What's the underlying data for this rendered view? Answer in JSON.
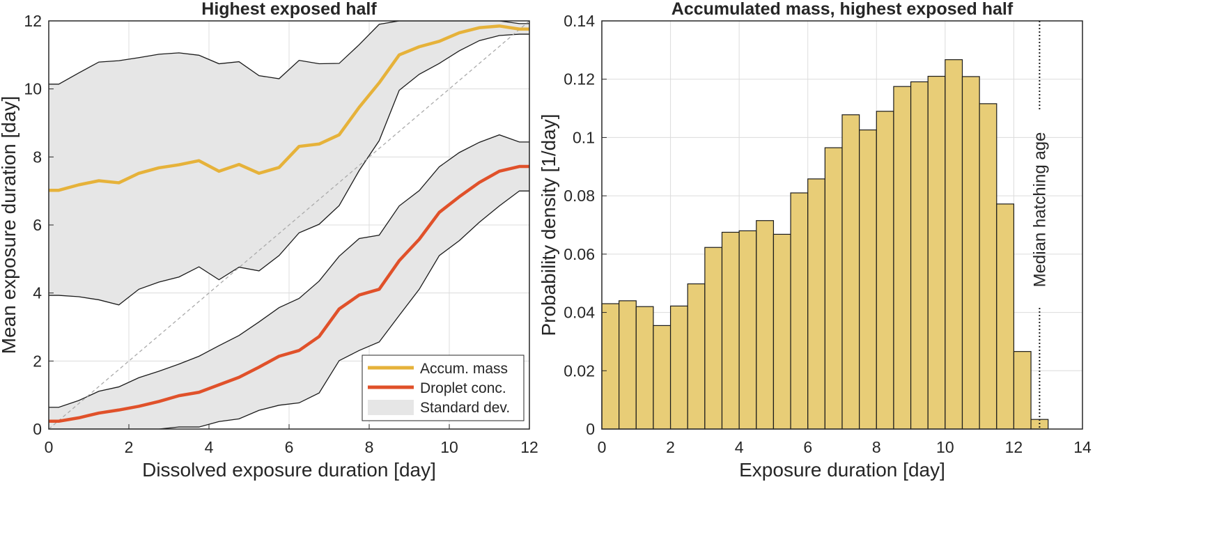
{
  "chart_data": [
    {
      "type": "line",
      "title": "Highest exposed half",
      "xlabel": "Dissolved exposure duration [day]",
      "ylabel": "Mean exposure duration [day]",
      "xlim": [
        0,
        12
      ],
      "ylim": [
        0,
        12
      ],
      "xticks": [
        "0",
        "2",
        "4",
        "6",
        "8",
        "10",
        "12"
      ],
      "yticks": [
        "0",
        "2",
        "4",
        "6",
        "8",
        "10",
        "12"
      ],
      "grid": true,
      "legend_position": "bottom-right",
      "x": [
        0,
        0.25,
        0.75,
        1.25,
        1.75,
        2.25,
        2.75,
        3.25,
        3.75,
        4.25,
        4.75,
        5.25,
        5.75,
        6.25,
        6.75,
        7.25,
        7.75,
        8.25,
        8.75,
        9.25,
        9.75,
        10.25,
        10.75,
        11.25,
        11.75,
        12
      ],
      "series": [
        {
          "name": "Accum. mass",
          "color": "#e6b23a",
          "values": [
            7.02,
            7.02,
            7.18,
            7.3,
            7.24,
            7.52,
            7.68,
            7.77,
            7.89,
            7.58,
            7.78,
            7.52,
            7.69,
            8.31,
            8.38,
            8.65,
            9.46,
            10.18,
            11.0,
            11.24,
            11.4,
            11.65,
            11.8,
            11.85,
            11.76,
            11.76
          ],
          "std_upper": [
            10.14,
            10.14,
            10.47,
            10.79,
            10.83,
            10.92,
            11.02,
            11.06,
            10.99,
            10.74,
            10.8,
            10.39,
            10.3,
            10.84,
            10.74,
            10.75,
            11.3,
            11.9,
            12.0,
            12.0,
            12.0,
            12.0,
            12.0,
            12.0,
            11.92,
            11.92
          ],
          "std_lower": [
            3.93,
            3.93,
            3.89,
            3.8,
            3.65,
            4.11,
            4.32,
            4.47,
            4.77,
            4.39,
            4.76,
            4.65,
            5.1,
            5.77,
            6.02,
            6.57,
            7.6,
            8.48,
            9.96,
            10.43,
            10.75,
            11.12,
            11.42,
            11.57,
            11.61,
            11.61
          ]
        },
        {
          "name": "Droplet conc.",
          "color": "#e0512a",
          "values": [
            0.23,
            0.23,
            0.33,
            0.47,
            0.56,
            0.67,
            0.81,
            0.98,
            1.08,
            1.3,
            1.52,
            1.82,
            2.14,
            2.31,
            2.72,
            3.53,
            3.94,
            4.11,
            4.95,
            5.58,
            6.37,
            6.83,
            7.25,
            7.58,
            7.72,
            7.72
          ],
          "std_upper": [
            0.64,
            0.64,
            0.84,
            1.11,
            1.24,
            1.51,
            1.7,
            1.91,
            2.14,
            2.45,
            2.75,
            3.15,
            3.57,
            3.84,
            4.35,
            5.08,
            5.6,
            5.7,
            6.56,
            7.01,
            7.71,
            8.13,
            8.43,
            8.65,
            8.44,
            8.44
          ],
          "std_lower": [
            0.0,
            0.0,
            0.0,
            0.0,
            0.0,
            0.0,
            0.0,
            0.06,
            0.06,
            0.22,
            0.3,
            0.55,
            0.7,
            0.77,
            1.06,
            2.01,
            2.31,
            2.56,
            3.34,
            4.11,
            5.1,
            5.54,
            6.08,
            6.56,
            7.0,
            7.0
          ]
        }
      ],
      "reference_line": {
        "style": "dashed",
        "color": "#aaaaaa",
        "from": [
          0,
          0
        ],
        "to": [
          12,
          12
        ]
      },
      "legend": [
        {
          "label": "Accum. mass",
          "kind": "line",
          "color": "#e6b23a"
        },
        {
          "label": "Droplet conc.",
          "kind": "line",
          "color": "#e0512a"
        },
        {
          "label": "Standard dev.",
          "kind": "patch",
          "color": "#e6e6e6"
        }
      ],
      "band_color": "#e6e6e6"
    },
    {
      "type": "bar",
      "title": "Accumulated mass, highest exposed half",
      "xlabel": "Exposure duration [day]",
      "ylabel": "Probability density [1/day]",
      "xlim": [
        0,
        14
      ],
      "ylim": [
        0,
        0.14
      ],
      "xticks": [
        "0",
        "2",
        "4",
        "6",
        "8",
        "10",
        "12",
        "14"
      ],
      "yticks": [
        "0",
        "0.02",
        "0.04",
        "0.06",
        "0.08",
        "0.1",
        "0.12",
        "0.14"
      ],
      "grid": true,
      "bin_width": 0.5,
      "bin_edges_start": 0,
      "values": [
        0.043,
        0.044,
        0.042,
        0.0355,
        0.0422,
        0.0498,
        0.0623,
        0.0675,
        0.068,
        0.0715,
        0.0668,
        0.081,
        0.0858,
        0.0965,
        0.1078,
        0.1026,
        0.109,
        0.1175,
        0.1191,
        0.121,
        0.1267,
        0.1209,
        0.1116,
        0.0772,
        0.0266,
        0.0033
      ],
      "bar_color": "#e8cd77",
      "vline": {
        "x": 12.75,
        "label": "Median hatching age",
        "style": "dotted"
      }
    }
  ]
}
